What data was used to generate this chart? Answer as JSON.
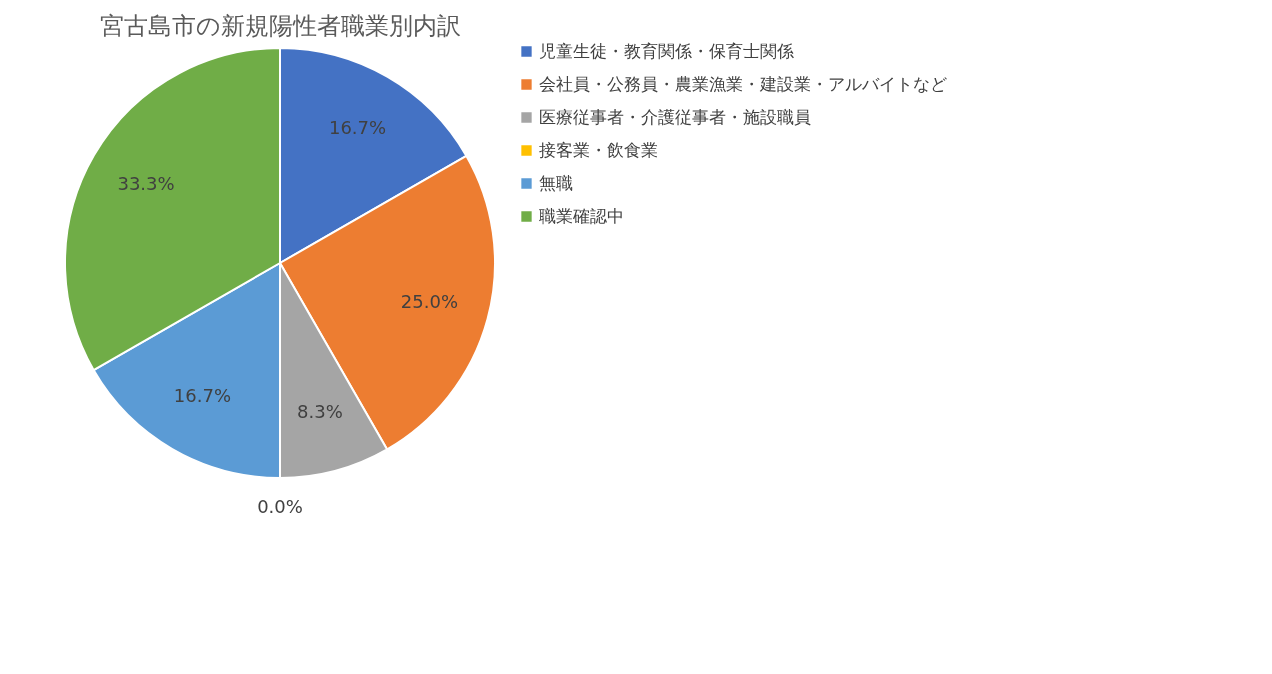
{
  "chart_data": {
    "type": "pie",
    "title": "宮古島市の新規陽性者職業別内訳",
    "categories": [
      "児童生徒・教育関係・保育士関係",
      "会社員・公務員・農業漁業・建設業・アルバイトなど",
      "医療従事者・介護従事者・施設職員",
      "接客業・飲食業",
      "無職",
      "職業確認中"
    ],
    "values": [
      16.7,
      25.0,
      8.3,
      0.0,
      16.7,
      33.3
    ],
    "value_labels": [
      "16.7%",
      "25.0%",
      "8.3%",
      "0.0%",
      "16.7%",
      "33.3%"
    ],
    "colors": [
      "#4472c4",
      "#ed7d31",
      "#a5a5a5",
      "#ffc000",
      "#5b9bd5",
      "#70ad47"
    ],
    "legend": "right"
  }
}
